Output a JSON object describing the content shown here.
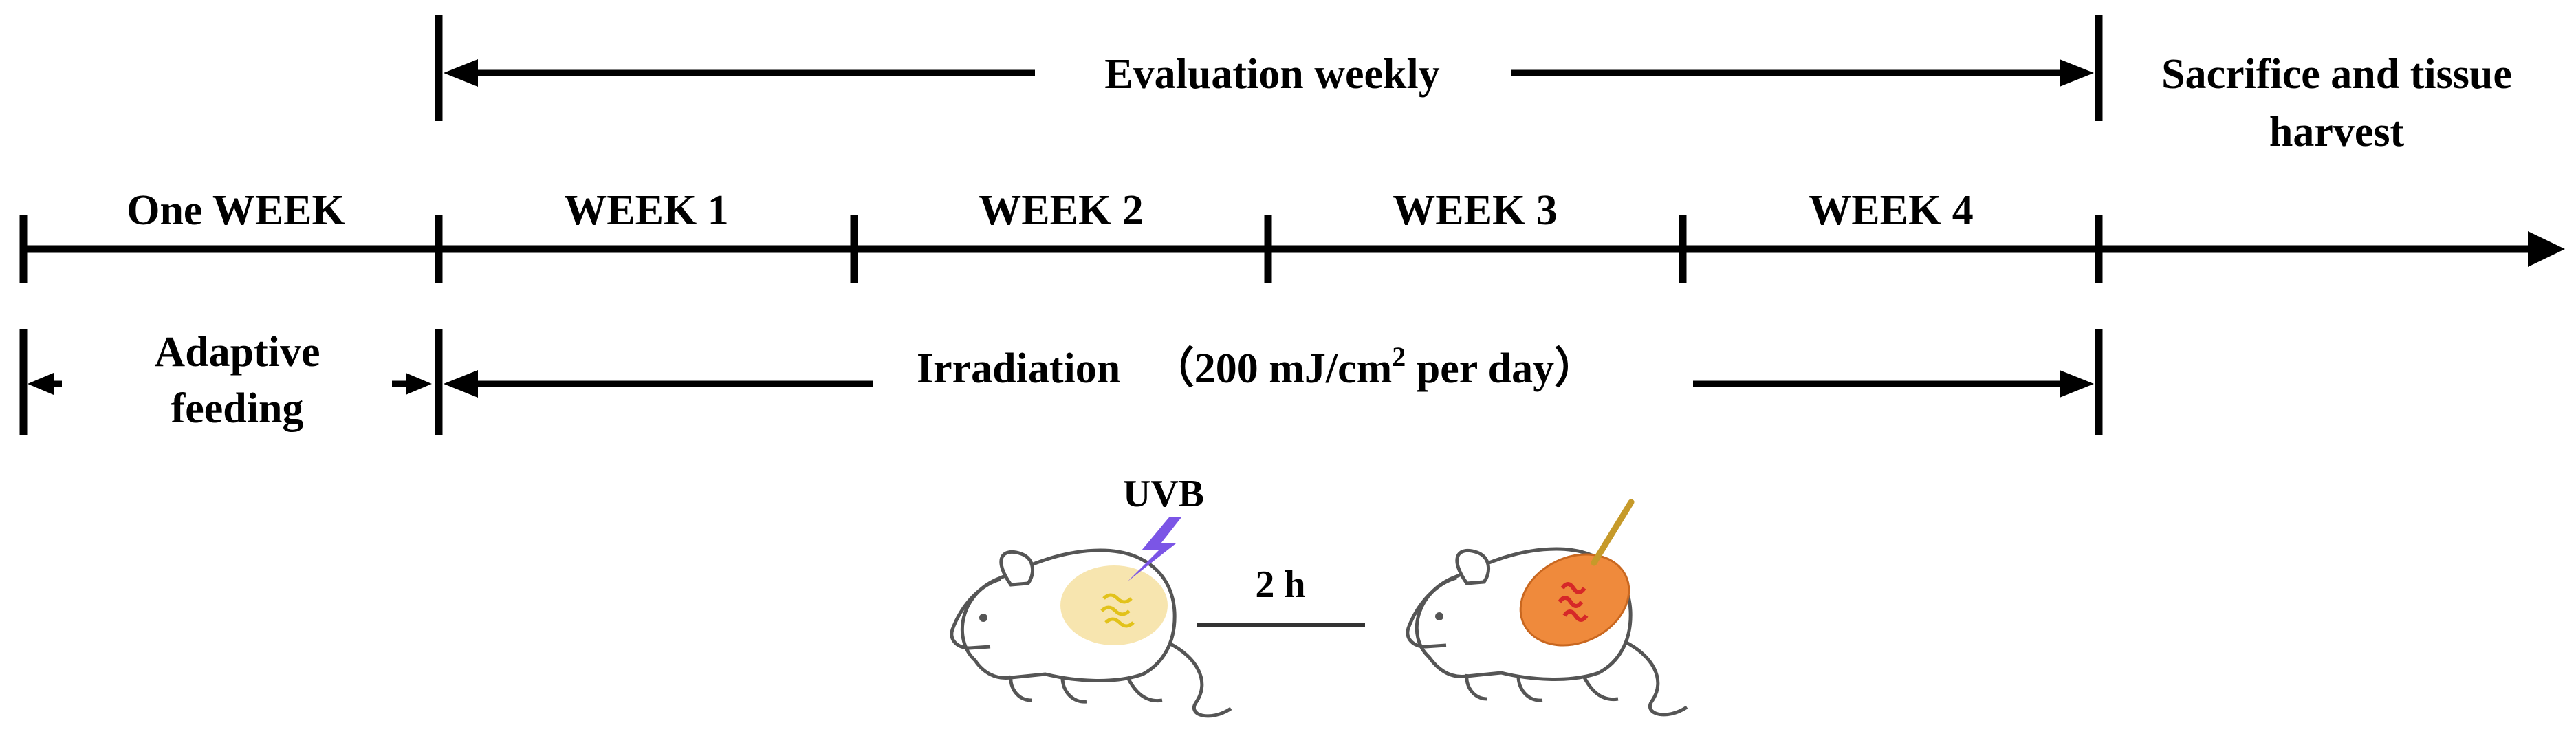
{
  "top_span": {
    "label": "Evaluation weekly"
  },
  "end_label": {
    "line1": "Sacrifice and tissue",
    "line2": "harvest"
  },
  "timeline": {
    "periods": [
      "One WEEK",
      "WEEK 1",
      "WEEK 2",
      "WEEK 3",
      "WEEK 4"
    ]
  },
  "adaptive": {
    "line1": "Adaptive",
    "line2": "feeding"
  },
  "irradiation": {
    "label": "Irradiation",
    "dose_prefix": "（200 mJ/cm",
    "dose_exp": "2",
    "dose_suffix": " per day）"
  },
  "illustration": {
    "uvb_label": "UVB",
    "interval_label": "2 h",
    "colors": {
      "uvb_bolt": "#7b55e6",
      "uv_spot": "#f6e2a6",
      "uv_lines": "#e2c21a",
      "inflamed_spot": "#ef8a3c",
      "inflamed_lines": "#d62828",
      "probe": "#c69a2a"
    }
  }
}
